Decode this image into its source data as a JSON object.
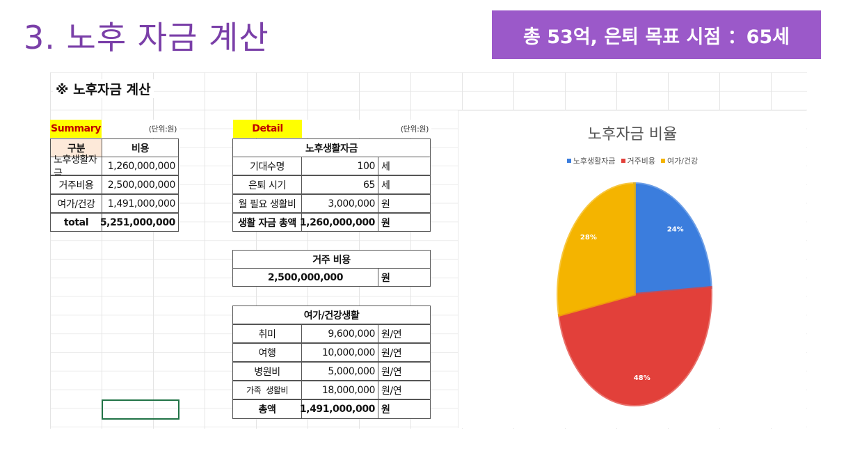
{
  "slide": {
    "title": "3. 노후 자금 계산",
    "banner": "총 53억, 은퇴 목표 시점 ：65세"
  },
  "sheet": {
    "heading": "※ 노후자금 계산",
    "summary": {
      "label": "Summary",
      "unit": "(단위:원)",
      "headers": [
        "구분",
        "비용"
      ],
      "rows": [
        {
          "name": "노후생활자금",
          "value": "1,260,000,000"
        },
        {
          "name": "거주비용",
          "value": "2,500,000,000"
        },
        {
          "name": "여가/건강",
          "value": "1,491,000,000"
        },
        {
          "name": "total",
          "value": "5,251,000,000"
        }
      ]
    },
    "detail": {
      "label": "Detail",
      "unit": "(단위:원)",
      "living": {
        "header": "노후생활자금",
        "rows": [
          {
            "name": "기대수명",
            "value": "100",
            "unit": "세"
          },
          {
            "name": "은퇴 시기",
            "value": "65",
            "unit": "세"
          },
          {
            "name": "월 필요 생활비",
            "value": "3,000,000",
            "unit": "원"
          },
          {
            "name": "생활 자금 총액",
            "value": "1,260,000,000",
            "unit": "원"
          }
        ]
      },
      "housing": {
        "header": "거주 비용",
        "value": "2,500,000,000",
        "unit": "원"
      },
      "leisure": {
        "header": "여가/건강생활",
        "rows": [
          {
            "name": "취미",
            "value": "9,600,000",
            "unit": "원/연"
          },
          {
            "name": "여행",
            "value": "10,000,000",
            "unit": "원/연"
          },
          {
            "name": "병원비",
            "value": "5,000,000",
            "unit": "원/연"
          },
          {
            "name": "가족  생활비",
            "value": "18,000,000",
            "unit": "원/연"
          },
          {
            "name": "총액",
            "value": "1,491,000,000",
            "unit": "원"
          }
        ]
      }
    }
  },
  "chart_data": {
    "type": "pie",
    "title": "노후자금 비율",
    "categories": [
      "노후생활자금",
      "거주비용",
      "여가/건강"
    ],
    "values": [
      24,
      48,
      28
    ],
    "labels": [
      "24%",
      "48%",
      "28%"
    ],
    "colors": [
      "#3b7ddd",
      "#e2403a",
      "#f4b400"
    ],
    "legend_position": "top"
  }
}
